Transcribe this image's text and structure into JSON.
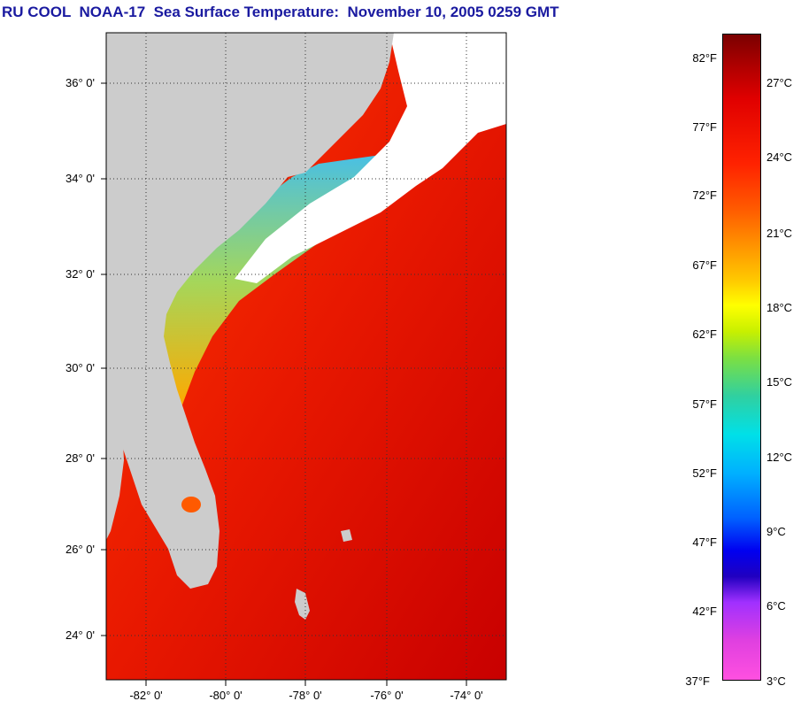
{
  "title": "RU COOL  NOAA-17  Sea Surface Temperature:  November 10, 2005 0259 GMT",
  "lat_labels": [
    "36° 0'",
    "34° 0'",
    "32° 0'",
    "30° 0'",
    "28° 0'",
    "26° 0'",
    "24° 0'"
  ],
  "lon_labels": [
    "-82° 0'",
    "-80° 0'",
    "-78° 0'",
    "-76° 0'",
    "-74° 0'"
  ],
  "colorbar": {
    "fahrenheit_labels": [
      "82°F",
      "77°F",
      "72°F",
      "67°F",
      "62°F",
      "57°F",
      "52°F",
      "47°F",
      "42°F",
      "37°F"
    ],
    "celsius_labels": [
      "27°C",
      "24°C",
      "21°C",
      "18°C",
      "15°C",
      "12°C",
      "9°C",
      "6°C",
      "3°C"
    ]
  },
  "colors": {
    "land": "#cccccc",
    "cloud": "#ffffff",
    "warm": "#e81800",
    "hot": "#c80000",
    "cool": "#40c8f0",
    "title": "#1a1aa0"
  }
}
